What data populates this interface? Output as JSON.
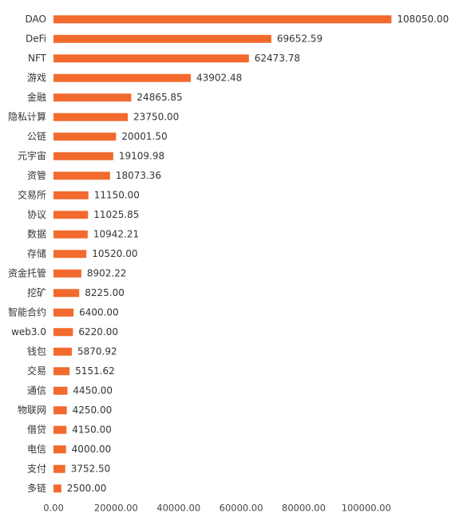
{
  "chart_data": {
    "type": "hbar",
    "categories": [
      "DAO",
      "DeFi",
      "NFT",
      "游戏",
      "金融",
      "隐私计算",
      "公链",
      "元宇宙",
      "资管",
      "交易所",
      "协议",
      "数据",
      "存储",
      "资金托管",
      "挖矿",
      "智能合约",
      "web3.0",
      "钱包",
      "交易",
      "通信",
      "物联网",
      "借贷",
      "电信",
      "支付",
      "多链"
    ],
    "values": [
      108050,
      69652.59,
      62473.78,
      43902.48,
      24865.85,
      23750,
      20001.5,
      19109.98,
      18073.36,
      11150,
      11025.85,
      10942.21,
      10520,
      8902.22,
      8225,
      6400,
      6220,
      5870.92,
      5151.62,
      4450,
      4250,
      4150,
      4000,
      3752.5,
      2500
    ],
    "value_labels": [
      "108050.00",
      "69652.59",
      "62473.78",
      "43902.48",
      "24865.85",
      "23750.00",
      "20001.50",
      "19109.98",
      "18073.36",
      "11150.00",
      "11025.85",
      "10942.21",
      "10520.00",
      "8902.22",
      "8225.00",
      "6400.00",
      "6220.00",
      "5870.92",
      "5151.62",
      "4450.00",
      "4250.00",
      "4150.00",
      "4000.00",
      "3752.50",
      "2500.00"
    ],
    "color": "#f26a2d",
    "xlim": [
      0,
      110000
    ],
    "xticks": [
      {
        "value": 0,
        "label": "0.00"
      },
      {
        "value": 20000,
        "label": "20000.00"
      },
      {
        "value": 40000,
        "label": "40000.00"
      },
      {
        "value": 60000,
        "label": "60000.00"
      },
      {
        "value": 80000,
        "label": "80000.00"
      },
      {
        "value": 100000,
        "label": "100000.00"
      }
    ]
  }
}
